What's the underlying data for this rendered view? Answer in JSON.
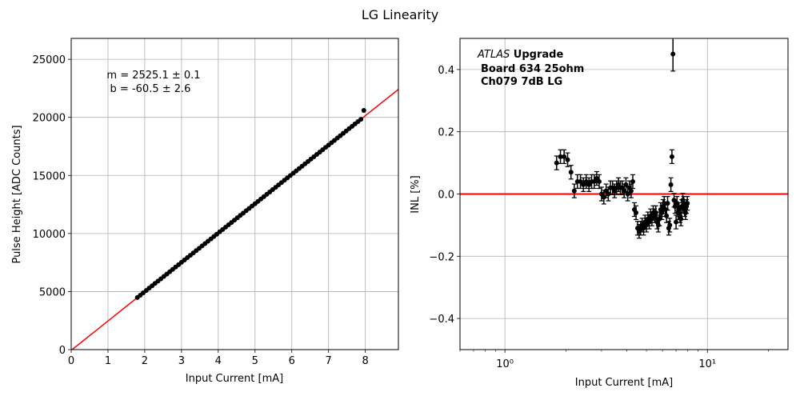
{
  "figure": {
    "suptitle": "LG Linearity"
  },
  "chart_data": [
    {
      "type": "scatter",
      "title": "",
      "xlabel": "Input Current [mA]",
      "ylabel": "Pulse Height [ADC Counts]",
      "xlim": [
        0,
        8.9
      ],
      "ylim": [
        0,
        26800
      ],
      "xticks": [
        0,
        1,
        2,
        3,
        4,
        5,
        6,
        7,
        8
      ],
      "yticks": [
        0,
        5000,
        10000,
        15000,
        20000,
        25000
      ],
      "grid": true,
      "annotation": {
        "line1": "m = 2525.1 ± 0.1",
        "line2": "b = -60.5 ± 2.6"
      },
      "fit": {
        "slope": 2525.1,
        "intercept": -60.5,
        "color": "#ff0000"
      },
      "series": [
        {
          "x": [
            1.8,
            1.88,
            1.96,
            2.04,
            2.12,
            2.2,
            2.28,
            2.36,
            2.44,
            2.52,
            2.6,
            2.68,
            2.76,
            2.84,
            2.92,
            3.0,
            3.08,
            3.16,
            3.24,
            3.32,
            3.4,
            3.48,
            3.56,
            3.64,
            3.72,
            3.8,
            3.88,
            3.96,
            4.04,
            4.12,
            4.2,
            4.28,
            4.36,
            4.44,
            4.52,
            4.6,
            4.68,
            4.76,
            4.84,
            4.92,
            5.0,
            5.08,
            5.16,
            5.24,
            5.32,
            5.4,
            5.48,
            5.56,
            5.64,
            5.72,
            5.8,
            5.88,
            5.96,
            6.04,
            6.12,
            6.2,
            6.28,
            6.36,
            6.44,
            6.52,
            6.6,
            6.68,
            6.76,
            6.84,
            6.92,
            7.0,
            7.08,
            7.16,
            7.24,
            7.32,
            7.4,
            7.48,
            7.56,
            7.64,
            7.72,
            7.8,
            7.88,
            7.96
          ],
          "y": [
            4485,
            4687,
            4889,
            5091,
            5293,
            5495,
            5697,
            5899,
            6101,
            6303,
            6505,
            6707,
            6909,
            7111,
            7313,
            7515,
            7717,
            7919,
            8121,
            8323,
            8525,
            8727,
            8929,
            9131,
            9333,
            9535,
            9737,
            9939,
            10141,
            10343,
            10545,
            10747,
            10949,
            11151,
            11353,
            11555,
            11757,
            11959,
            12161,
            12363,
            12565,
            12767,
            12969,
            13171,
            13373,
            13575,
            13777,
            13979,
            14181,
            14383,
            14585,
            14787,
            14989,
            15191,
            15393,
            15595,
            15797,
            15999,
            16201,
            16403,
            16605,
            16807,
            17009,
            17211,
            17413,
            17615,
            17817,
            18019,
            18221,
            18423,
            18625,
            18827,
            19029,
            19231,
            19433,
            19635,
            19837,
            20600
          ]
        }
      ]
    },
    {
      "type": "scatter",
      "title": "",
      "xlabel": "Input Current [mA]",
      "ylabel": "INL [%]",
      "xscale": "log",
      "xlim": [
        0.6,
        25
      ],
      "ylim": [
        -0.5,
        0.5
      ],
      "xticks": [
        "10⁰",
        "10¹"
      ],
      "yticks": [
        -0.4,
        -0.2,
        0.0,
        0.2,
        0.4
      ],
      "grid": true,
      "reference_line": {
        "y": 0,
        "color": "#ff0000"
      },
      "annotation": {
        "atlas": "ATLAS",
        "upgrade": " Upgrade",
        "line2": "Board 634 25ohm",
        "line3": "Ch079 7dB LG"
      },
      "series": [
        {
          "x": [
            1.8,
            1.88,
            1.96,
            2.04,
            2.12,
            2.2,
            2.28,
            2.36,
            2.44,
            2.52,
            2.6,
            2.68,
            2.76,
            2.84,
            2.92,
            3.0,
            3.08,
            3.16,
            3.24,
            3.32,
            3.4,
            3.48,
            3.56,
            3.64,
            3.72,
            3.8,
            3.88,
            3.96,
            4.04,
            4.12,
            4.2,
            4.28,
            4.36,
            4.44,
            4.52,
            4.6,
            4.68,
            4.76,
            4.84,
            4.92,
            5.0,
            5.08,
            5.16,
            5.24,
            5.32,
            5.4,
            5.48,
            5.56,
            5.64,
            5.72,
            5.8,
            5.88,
            5.96,
            6.04,
            6.12,
            6.2,
            6.28,
            6.36,
            6.44,
            6.52,
            6.6,
            6.68,
            6.76,
            6.84,
            6.92,
            7.0,
            7.08,
            7.16,
            7.24,
            7.32,
            7.4,
            7.48,
            7.56,
            7.64,
            7.72,
            7.8,
            7.88,
            7.96
          ],
          "y": [
            0.1,
            0.12,
            0.12,
            0.11,
            0.07,
            0.01,
            0.04,
            0.04,
            0.03,
            0.04,
            0.03,
            0.04,
            0.04,
            0.05,
            0.04,
            0.0,
            -0.01,
            0.01,
            0.0,
            0.02,
            0.02,
            0.01,
            0.02,
            0.03,
            0.02,
            0.02,
            0.01,
            0.03,
            0.0,
            0.02,
            0.01,
            0.04,
            -0.05,
            -0.06,
            -0.11,
            -0.12,
            -0.11,
            -0.1,
            -0.11,
            -0.09,
            -0.1,
            -0.08,
            -0.09,
            -0.07,
            -0.08,
            -0.06,
            -0.07,
            -0.06,
            -0.09,
            -0.1,
            -0.08,
            -0.05,
            -0.06,
            -0.04,
            -0.03,
            -0.05,
            -0.07,
            -0.03,
            -0.11,
            -0.1,
            0.03,
            0.12,
            0.45,
            -0.02,
            -0.04,
            -0.09,
            -0.03,
            -0.06,
            -0.05,
            -0.07,
            -0.08,
            -0.04,
            -0.02,
            -0.03,
            -0.05,
            -0.06,
            -0.04,
            -0.03
          ],
          "err": 0.022
        }
      ]
    }
  ]
}
